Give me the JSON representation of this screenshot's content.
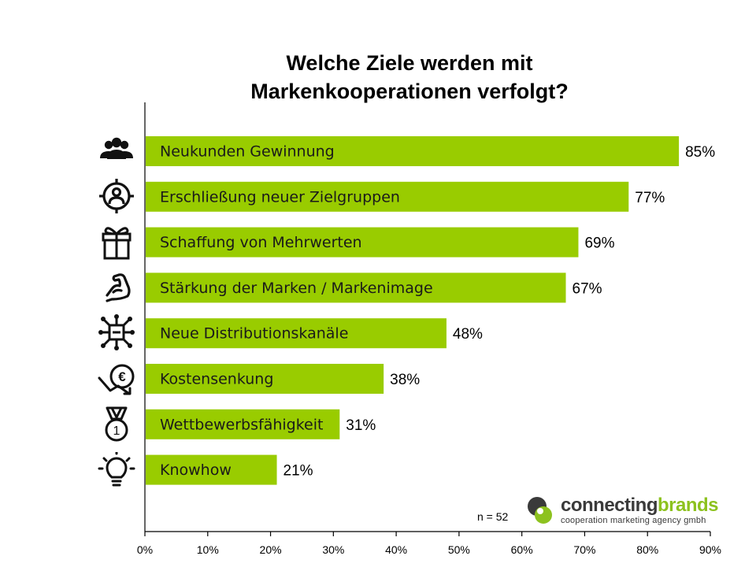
{
  "title_lines": [
    "Welche Ziele werden mit",
    "Markenkooperationen verfolgt?"
  ],
  "note": "n = 52",
  "logo": {
    "word1": "connecting",
    "word2": "brands",
    "tagline": "cooperation marketing agency gmbh"
  },
  "colors": {
    "bar": "#99cc00",
    "axis": "#000000",
    "logo_dark": "#3a3a3a",
    "logo_green": "#8dc21f"
  },
  "chart_data": {
    "type": "bar",
    "orientation": "horizontal",
    "title": "Welche Ziele werden mit Markenkooperationen verfolgt?",
    "categories": [
      "Neukunden Gewinnung",
      "Erschließung neuer Zielgruppen",
      "Schaffung von Mehrwerten",
      "Stärkung der Marken / Markenimage",
      "Neue Distributionskanäle",
      "Kostensenkung",
      "Wettbewerbsfähigkeit",
      "Knowhow"
    ],
    "values": [
      85,
      77,
      69,
      67,
      48,
      38,
      31,
      21
    ],
    "value_labels": [
      "85%",
      "77%",
      "69%",
      "67%",
      "48%",
      "38%",
      "31%",
      "21%"
    ],
    "icons": [
      "group-icon",
      "target-person-icon",
      "gift-icon",
      "flexed-arm-icon",
      "distribution-network-icon",
      "euro-down-icon",
      "medal-icon",
      "lightbulb-icon"
    ],
    "xlim": [
      0,
      90
    ],
    "xticks": [
      0,
      10,
      20,
      30,
      40,
      50,
      60,
      70,
      80,
      90
    ],
    "xtick_labels": [
      "0%",
      "10%",
      "20%",
      "30%",
      "40%",
      "50%",
      "60%",
      "70%",
      "80%",
      "90%"
    ],
    "grid": false,
    "legend": "none"
  }
}
